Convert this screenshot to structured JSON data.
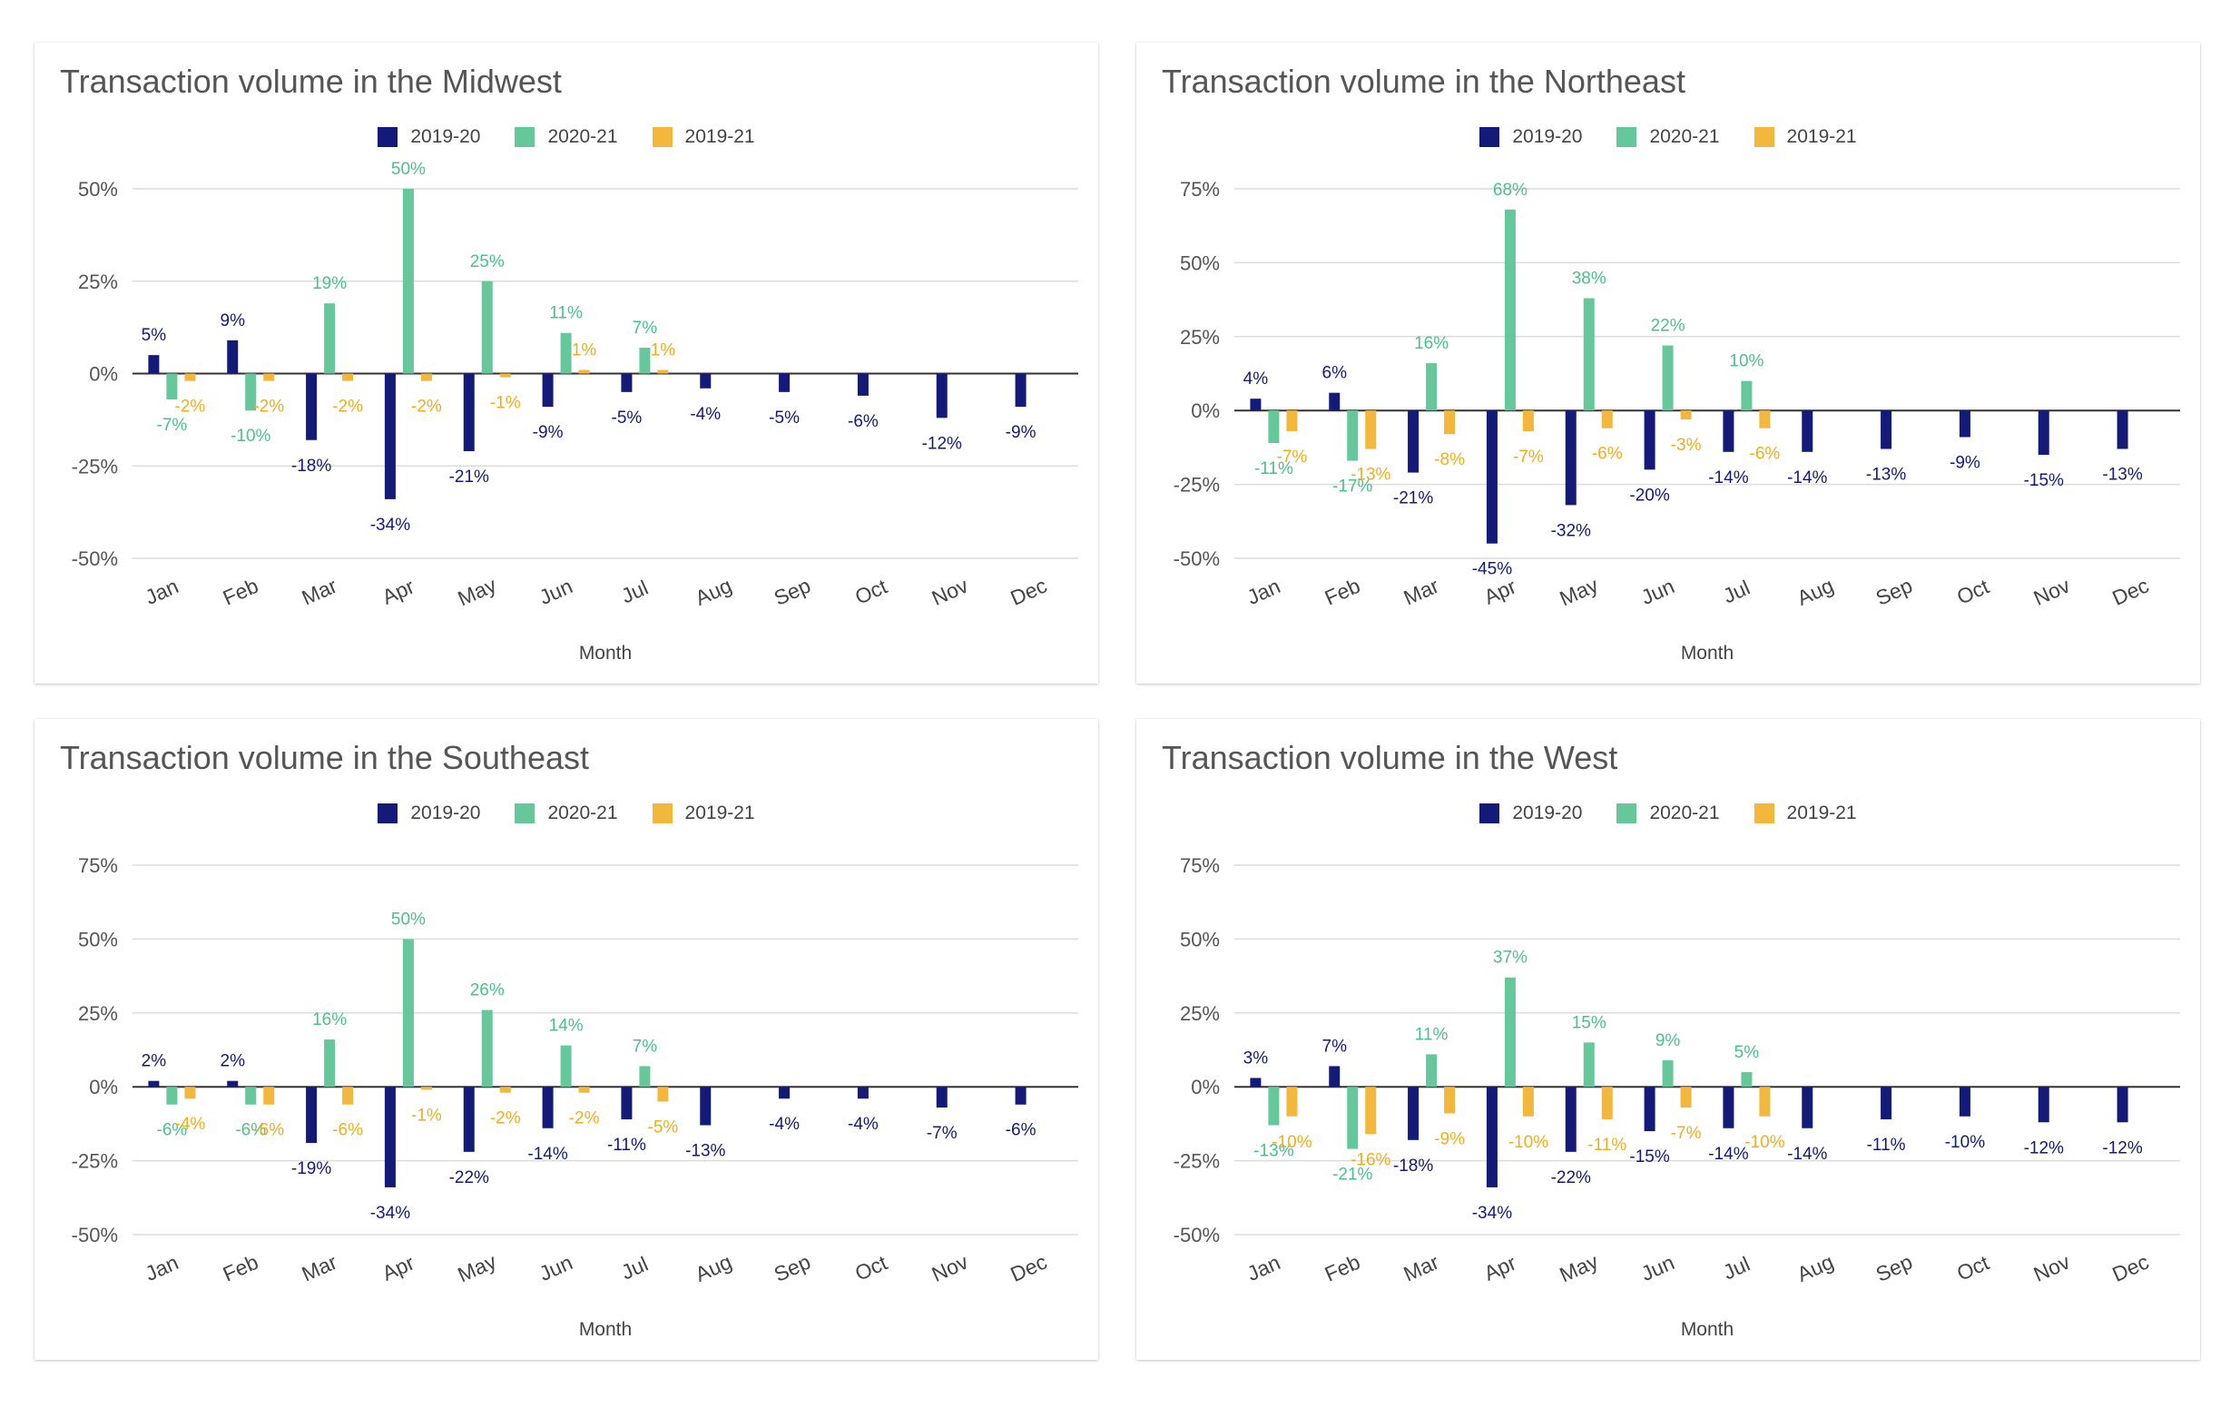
{
  "colors": {
    "s2019_20": "#131a78",
    "s2020_21": "#66c79b",
    "s2019_21": "#f2b73b"
  },
  "chart_data": [
    {
      "type": "bar",
      "title": "Transaction volume in the Midwest",
      "xlabel": "Month",
      "ylabel": "",
      "categories": [
        "Jan",
        "Feb",
        "Mar",
        "Apr",
        "May",
        "Jun",
        "Jul",
        "Aug",
        "Sep",
        "Oct",
        "Nov",
        "Dec"
      ],
      "yticks": [
        "50%",
        "25%",
        "0%",
        "-25%",
        "-50%"
      ],
      "ylim": [
        -50,
        50
      ],
      "legend_position": "top-center",
      "grid": true,
      "series": [
        {
          "name": "2019-20",
          "color": "#131a78",
          "values": [
            5,
            9,
            -18,
            -34,
            -21,
            -9,
            -5,
            -4,
            -5,
            -6,
            -12,
            -9
          ],
          "labels": [
            "5%",
            "9%",
            "-18%",
            "-34%",
            "-21%",
            "-9%",
            "-5%",
            "-4%",
            "-5%",
            "-6%",
            "-12%",
            "-9%"
          ]
        },
        {
          "name": "2020-21",
          "color": "#66c79b",
          "values": [
            -7,
            -10,
            19,
            50,
            25,
            11,
            7,
            null,
            null,
            null,
            null,
            null
          ],
          "labels": [
            "-7%",
            "-10%",
            "19%",
            "50%",
            "25%",
            "11%",
            "7%",
            "",
            "",
            "",
            "",
            ""
          ]
        },
        {
          "name": "2019-21",
          "color": "#f2b73b",
          "values": [
            -2,
            -2,
            -2,
            -2,
            -1,
            1,
            1,
            null,
            null,
            null,
            null,
            null
          ],
          "labels": [
            "-2%",
            "-2%",
            "-2%",
            "-2%",
            "-1%",
            "1%",
            "1%",
            "",
            "",
            "",
            "",
            ""
          ]
        }
      ]
    },
    {
      "type": "bar",
      "title": "Transaction volume in the Northeast",
      "xlabel": "Month",
      "ylabel": "",
      "categories": [
        "Jan",
        "Feb",
        "Mar",
        "Apr",
        "May",
        "Jun",
        "Jul",
        "Aug",
        "Sep",
        "Oct",
        "Nov",
        "Dec"
      ],
      "yticks": [
        "75%",
        "50%",
        "25%",
        "0%",
        "-25%",
        "-50%"
      ],
      "ylim": [
        -50,
        75
      ],
      "legend_position": "top-center",
      "grid": true,
      "series": [
        {
          "name": "2019-20",
          "color": "#131a78",
          "values": [
            4,
            6,
            -21,
            -45,
            -32,
            -20,
            -14,
            -14,
            -13,
            -9,
            -15,
            -13
          ],
          "labels": [
            "4%",
            "6%",
            "-21%",
            "-45%",
            "-32%",
            "-20%",
            "-14%",
            "-14%",
            "-13%",
            "-9%",
            "-15%",
            "-13%"
          ]
        },
        {
          "name": "2020-21",
          "color": "#66c79b",
          "values": [
            -11,
            -17,
            16,
            68,
            38,
            22,
            10,
            null,
            null,
            null,
            null,
            null
          ],
          "labels": [
            "-11%",
            "-17%",
            "16%",
            "68%",
            "38%",
            "22%",
            "10%",
            "",
            "",
            "",
            "",
            ""
          ]
        },
        {
          "name": "2019-21",
          "color": "#f2b73b",
          "values": [
            -7,
            -13,
            -8,
            -7,
            -6,
            -3,
            -6,
            null,
            null,
            null,
            null,
            null
          ],
          "labels": [
            "-7%",
            "-13%",
            "-8%",
            "-7%",
            "-6%",
            "-3%",
            "-6%",
            "",
            "",
            "",
            "",
            ""
          ]
        }
      ]
    },
    {
      "type": "bar",
      "title": "Transaction volume in the Southeast",
      "xlabel": "Month",
      "ylabel": "",
      "categories": [
        "Jan",
        "Feb",
        "Mar",
        "Apr",
        "May",
        "Jun",
        "Jul",
        "Aug",
        "Sep",
        "Oct",
        "Nov",
        "Dec"
      ],
      "yticks": [
        "75%",
        "50%",
        "25%",
        "0%",
        "-25%",
        "-50%"
      ],
      "ylim": [
        -50,
        75
      ],
      "legend_position": "top-center",
      "grid": true,
      "series": [
        {
          "name": "2019-20",
          "color": "#131a78",
          "values": [
            2,
            2,
            -19,
            -34,
            -22,
            -14,
            -11,
            -13,
            -4,
            -4,
            -7,
            -6
          ],
          "labels": [
            "2%",
            "2%",
            "-19%",
            "-34%",
            "-22%",
            "-14%",
            "-11%",
            "-13%",
            "-4%",
            "-4%",
            "-7%",
            "-6%"
          ]
        },
        {
          "name": "2020-21",
          "color": "#66c79b",
          "values": [
            -6,
            -6,
            16,
            50,
            26,
            14,
            7,
            null,
            null,
            null,
            null,
            null
          ],
          "labels": [
            "-6%",
            "-6%",
            "16%",
            "50%",
            "26%",
            "14%",
            "7%",
            "",
            "",
            "",
            "",
            ""
          ]
        },
        {
          "name": "2019-21",
          "color": "#f2b73b",
          "values": [
            -4,
            -6,
            -6,
            -1,
            -2,
            -2,
            -5,
            null,
            null,
            null,
            null,
            null
          ],
          "labels": [
            "-4%",
            "-6%",
            "-6%",
            "-1%",
            "-2%",
            "-2%",
            "-5%",
            "",
            "",
            "",
            "",
            ""
          ]
        }
      ]
    },
    {
      "type": "bar",
      "title": "Transaction volume in the West",
      "xlabel": "Month",
      "ylabel": "",
      "categories": [
        "Jan",
        "Feb",
        "Mar",
        "Apr",
        "May",
        "Jun",
        "Jul",
        "Aug",
        "Sep",
        "Oct",
        "Nov",
        "Dec"
      ],
      "yticks": [
        "75%",
        "50%",
        "25%",
        "0%",
        "-25%",
        "-50%"
      ],
      "ylim": [
        -50,
        75
      ],
      "legend_position": "top-center",
      "grid": true,
      "series": [
        {
          "name": "2019-20",
          "color": "#131a78",
          "values": [
            3,
            7,
            -18,
            -34,
            -22,
            -15,
            -14,
            -14,
            -11,
            -10,
            -12,
            -12
          ],
          "labels": [
            "3%",
            "7%",
            "-18%",
            "-34%",
            "-22%",
            "-15%",
            "-14%",
            "-14%",
            "-11%",
            "-10%",
            "-12%",
            "-12%"
          ]
        },
        {
          "name": "2020-21",
          "color": "#66c79b",
          "values": [
            -13,
            -21,
            11,
            37,
            15,
            9,
            5,
            null,
            null,
            null,
            null,
            null
          ],
          "labels": [
            "-13%",
            "-21%",
            "11%",
            "37%",
            "15%",
            "9%",
            "5%",
            "",
            "",
            "",
            "",
            ""
          ]
        },
        {
          "name": "2019-21",
          "color": "#f2b73b",
          "values": [
            -10,
            -16,
            -9,
            -10,
            -11,
            -7,
            -10,
            null,
            null,
            null,
            null,
            null
          ],
          "labels": [
            "-10%",
            "-16%",
            "-9%",
            "-10%",
            "-11%",
            "-7%",
            "-10%",
            "",
            "",
            "",
            "",
            ""
          ]
        }
      ]
    }
  ]
}
